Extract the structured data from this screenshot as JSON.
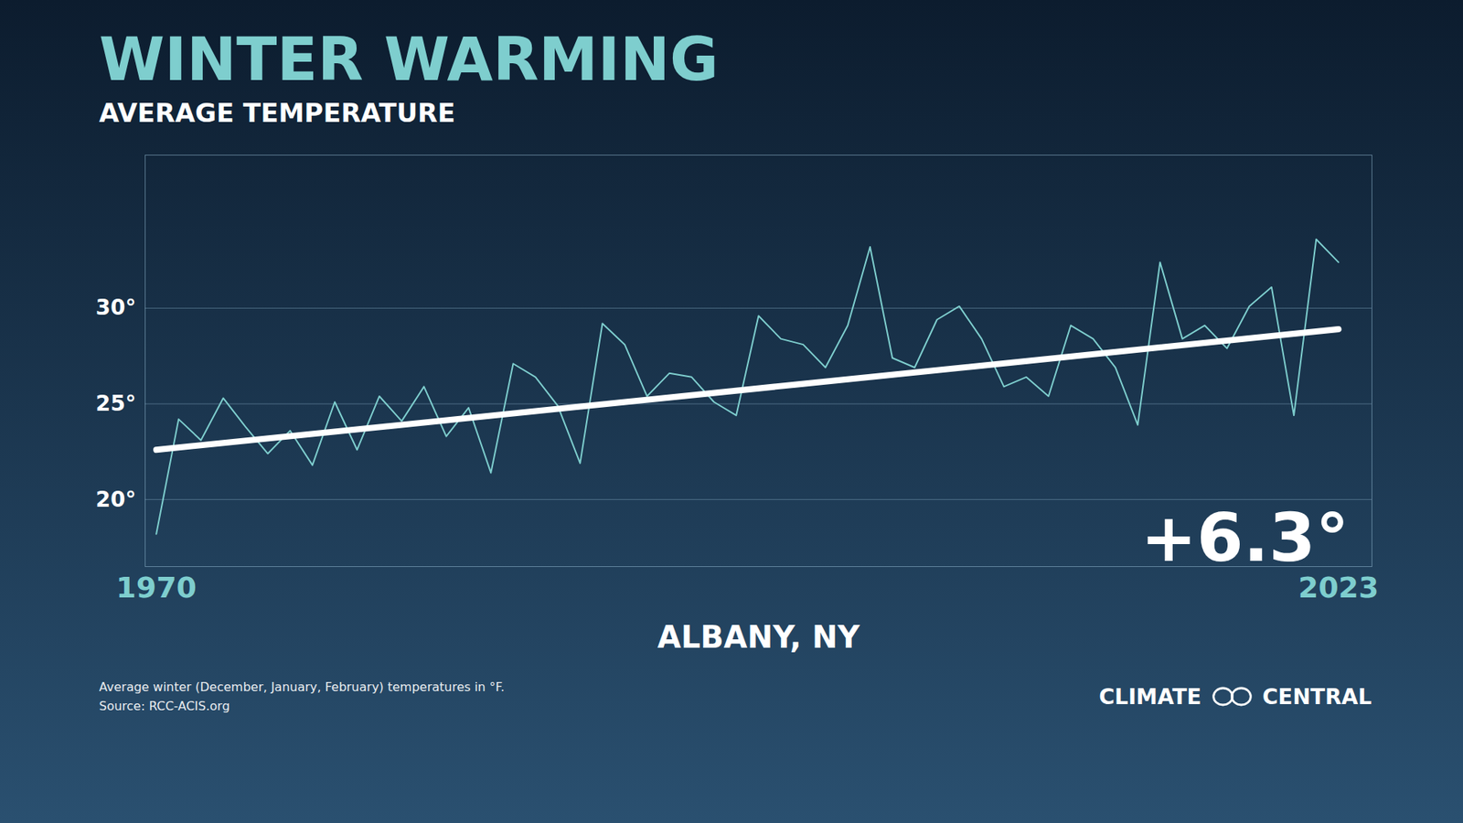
{
  "chart_data": {
    "type": "line",
    "title": "WINTER WARMING",
    "subtitle": "AVERAGE TEMPERATURE",
    "x": [
      1970,
      1971,
      1972,
      1973,
      1974,
      1975,
      1976,
      1977,
      1978,
      1979,
      1980,
      1981,
      1982,
      1983,
      1984,
      1985,
      1986,
      1987,
      1988,
      1989,
      1990,
      1991,
      1992,
      1993,
      1994,
      1995,
      1996,
      1997,
      1998,
      1999,
      2000,
      2001,
      2002,
      2003,
      2004,
      2005,
      2006,
      2007,
      2008,
      2009,
      2010,
      2011,
      2012,
      2013,
      2014,
      2015,
      2016,
      2017,
      2018,
      2019,
      2020,
      2021,
      2022,
      2023
    ],
    "values": [
      18.2,
      24.2,
      23.1,
      25.3,
      23.8,
      22.4,
      23.6,
      21.8,
      25.1,
      22.6,
      25.4,
      24.1,
      25.9,
      23.3,
      24.8,
      21.4,
      27.1,
      26.4,
      24.9,
      21.9,
      29.2,
      28.1,
      25.4,
      26.6,
      26.4,
      25.1,
      24.4,
      29.6,
      28.4,
      28.1,
      26.9,
      29.1,
      33.2,
      27.4,
      26.9,
      29.4,
      30.1,
      28.4,
      25.9,
      26.4,
      25.4,
      29.1,
      28.4,
      26.9,
      23.9,
      32.4,
      28.4,
      29.1,
      27.9,
      30.1,
      31.1,
      24.4,
      33.6,
      32.4
    ],
    "color": "#7ecece",
    "trend": {
      "x": [
        1970,
        2023
      ],
      "values": [
        22.6,
        28.9
      ],
      "color": "#ffffff"
    },
    "xlabel": "ALBANY, NY",
    "xlim": [
      1969.5,
      2024.5
    ],
    "xticks": [
      1970,
      2023
    ],
    "ylim": [
      16.5,
      38
    ],
    "yticks": [
      {
        "value": 20,
        "label": "20°"
      },
      {
        "value": 25,
        "label": "25°"
      },
      {
        "value": 30,
        "label": "30°"
      }
    ],
    "grid": true,
    "annotations": [
      "+6.3°"
    ],
    "notes": [
      "Average winter (December, January, February) temperatures in °F.",
      "Source: RCC-ACIS.org"
    ],
    "logo": [
      "CLIMATE",
      "CENTRAL"
    ]
  }
}
